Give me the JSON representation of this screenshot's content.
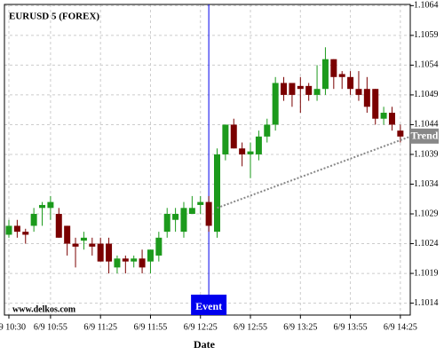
{
  "chart_data": {
    "type": "candlestick",
    "title": "EURUSD 5 (FOREX)",
    "watermark": "www.delkos.com",
    "x_label": "Date",
    "categories": [
      "6/9 10:30",
      null,
      null,
      null,
      null,
      "6/9 10:55",
      null,
      null,
      null,
      null,
      null,
      "6/9 11:25",
      null,
      null,
      null,
      null,
      null,
      "6/9 11:55",
      null,
      null,
      null,
      null,
      null,
      "6/9 12:25",
      null,
      null,
      null,
      null,
      null,
      "6/9 12:55",
      null,
      null,
      null,
      null,
      null,
      "6/9 13:25",
      null,
      null,
      null,
      null,
      null,
      "6/9 13:55",
      null,
      null,
      null,
      null,
      null,
      "6/9 14:25"
    ],
    "open": [
      1.10255,
      1.1027,
      1.1026,
      1.1027,
      1.103,
      1.103,
      1.1029,
      1.1027,
      1.1024,
      1.10245,
      1.1024,
      1.1024,
      1.1024,
      1.102,
      1.10215,
      1.1021,
      1.10215,
      1.1021,
      1.1022,
      1.1026,
      1.1028,
      1.1026,
      1.1029,
      1.10305,
      1.1031,
      1.1026,
      1.1039,
      1.1044,
      1.104,
      1.1039,
      1.1039,
      1.1042,
      1.1044,
      1.1051,
      1.1051,
      1.10505,
      1.10505,
      1.1049,
      1.105,
      1.1055,
      1.10525,
      1.1052,
      1.105,
      1.105,
      1.105,
      1.1045,
      1.1046,
      1.1043
    ],
    "high": [
      1.1028,
      1.1028,
      1.10265,
      1.103,
      1.1031,
      1.1032,
      1.103,
      1.1027,
      1.1025,
      1.1026,
      1.1025,
      1.1025,
      1.1025,
      1.1022,
      1.1022,
      1.1022,
      1.1023,
      1.1023,
      1.1026,
      1.103,
      1.103,
      1.1031,
      1.1032,
      1.1032,
      1.1032,
      1.104,
      1.1044,
      1.1045,
      1.1041,
      1.1041,
      1.1043,
      1.1045,
      1.1052,
      1.1052,
      1.1051,
      1.1052,
      1.1051,
      1.1054,
      1.1057,
      1.1055,
      1.1053,
      1.1053,
      1.1053,
      1.1052,
      1.105,
      1.1047,
      1.1047,
      1.1044
    ],
    "low": [
      1.1025,
      1.1025,
      1.1024,
      1.1026,
      1.1027,
      1.1028,
      1.1025,
      1.1022,
      1.102,
      1.1023,
      1.1022,
      1.1021,
      1.1019,
      1.1019,
      1.1019,
      1.102,
      1.1019,
      1.1019,
      1.1021,
      1.1025,
      1.1026,
      1.1025,
      1.1029,
      1.1029,
      1.1026,
      1.1025,
      1.1038,
      1.104,
      1.1037,
      1.1035,
      1.1038,
      1.1041,
      1.1043,
      1.1048,
      1.1047,
      1.1046,
      1.1048,
      1.1048,
      1.1049,
      1.105,
      1.105,
      1.1049,
      1.1048,
      1.1046,
      1.1044,
      1.1044,
      1.1043,
      1.1041
    ],
    "close": [
      1.1027,
      1.1026,
      1.10255,
      1.1029,
      1.10305,
      1.1031,
      1.1025,
      1.1024,
      1.10235,
      1.1025,
      1.10235,
      1.1021,
      1.1021,
      1.10215,
      1.1021,
      1.10215,
      1.102,
      1.1023,
      1.1025,
      1.1029,
      1.1029,
      1.103,
      1.103,
      1.1031,
      1.1027,
      1.1039,
      1.1044,
      1.104,
      1.1039,
      1.10395,
      1.1042,
      1.1044,
      1.1051,
      1.1049,
      1.1049,
      1.105,
      1.1049,
      1.105,
      1.1055,
      1.1052,
      1.1052,
      1.105,
      1.1049,
      1.1047,
      1.1045,
      1.1046,
      1.1044,
      1.1042
    ],
    "up_color": "#1c9a1c",
    "down_color": "#7a0000",
    "ylim": [
      1.1012,
      1.10642
    ],
    "yticks": [
      1.1014,
      1.1019,
      1.1024,
      1.1029,
      1.1034,
      1.1039,
      1.1044,
      1.1049,
      1.1054,
      1.1059,
      1.1064
    ],
    "grid": true,
    "event": {
      "label": "Event",
      "index": 24,
      "color": "#0000ee"
    },
    "trend": {
      "label": "Trend",
      "start_index": 25,
      "start_value": 1.103,
      "end_index": 47,
      "end_value": 1.1042,
      "color": "#888888"
    }
  }
}
